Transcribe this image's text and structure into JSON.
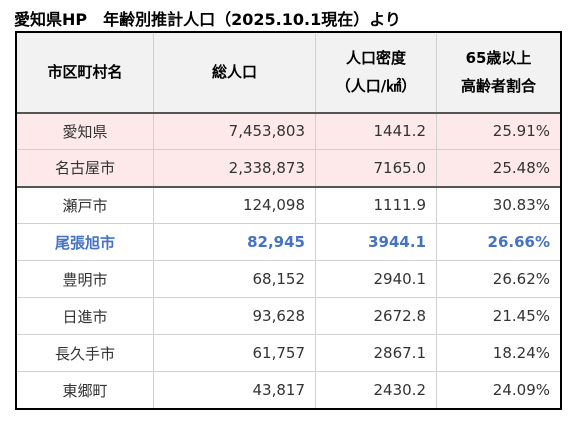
{
  "title": "愛知県HP　年齢別推計人口（2025.10.1現在）より",
  "header": {
    "col1": "市区町村名",
    "col2": "総人口",
    "col3_line1": "人口密度",
    "col3_line2": "（人口/㎢）",
    "col4_line1": "65歳以上",
    "col4_line2": "高齢者割合"
  },
  "rows": [
    {
      "name": "愛知県",
      "population": "7,453,803",
      "density": "1441.2",
      "elderly": "25.91%"
    },
    {
      "name": "名古屋市",
      "population": "2,338,873",
      "density": "7165.0",
      "elderly": "25.48%"
    },
    {
      "name": "瀬戸市",
      "population": "124,098",
      "density": "1111.9",
      "elderly": "30.83%"
    },
    {
      "name": "尾張旭市",
      "population": "82,945",
      "density": "3944.1",
      "elderly": "26.66%"
    },
    {
      "name": "豊明市",
      "population": "68,152",
      "density": "2940.1",
      "elderly": "26.62%"
    },
    {
      "name": "日進市",
      "population": "93,628",
      "density": "2672.8",
      "elderly": "21.45%"
    },
    {
      "name": "長久手市",
      "population": "61,757",
      "density": "2867.1",
      "elderly": "18.24%"
    },
    {
      "name": "東郷町",
      "population": "43,817",
      "density": "2430.2",
      "elderly": "24.09%"
    }
  ],
  "colors": {
    "pink_row": "#fde9e9",
    "highlight_text": "#4472c4",
    "header_bg": "#f2f2f2"
  }
}
